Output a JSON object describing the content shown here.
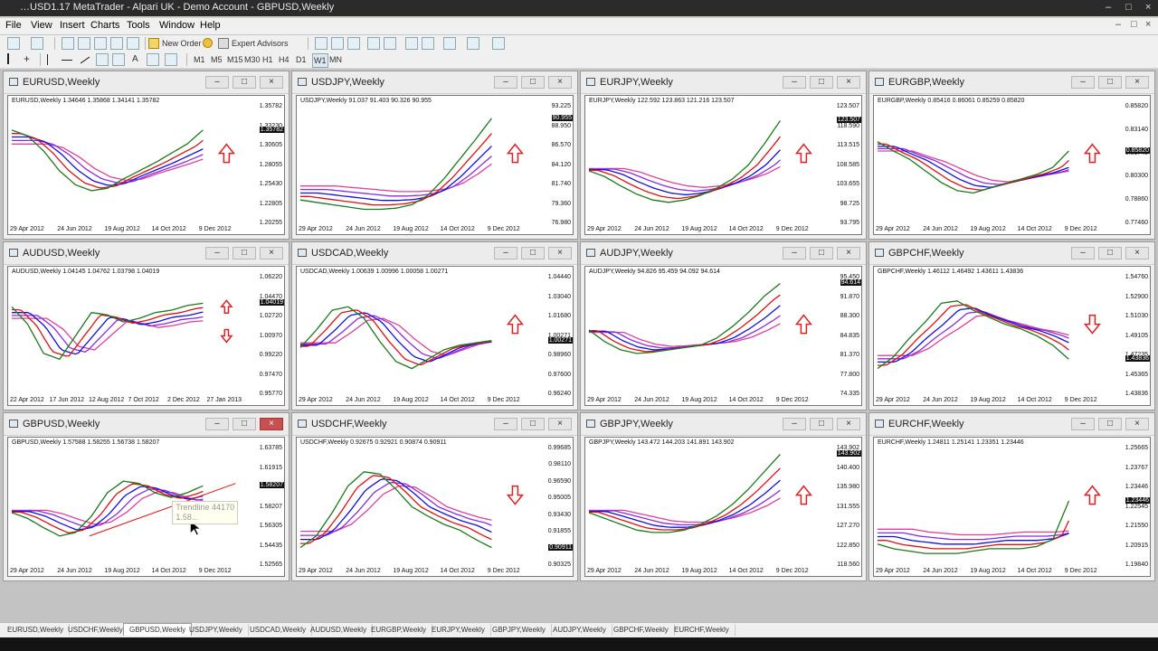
{
  "app": {
    "title": "…USD1.17 MetaTrader - Alpari UK - Demo Account - GBPUSD,Weekly",
    "window_controls": [
      "–",
      "□",
      "×"
    ]
  },
  "menu": {
    "items": [
      "File",
      "View",
      "Insert",
      "Charts",
      "Tools",
      "Window",
      "Help"
    ]
  },
  "toolbar": {
    "new_order": "New Order",
    "expert_advisors": "Expert Advisors",
    "timeframes": [
      "M1",
      "M5",
      "M15",
      "M30",
      "H1",
      "H4",
      "D1",
      "W1",
      "MN"
    ]
  },
  "colors": {
    "ma_green": "#1a7a1a",
    "ma_red": "#e01010",
    "ma_blue": "#1010e0",
    "ma_purple": "#8a2be2",
    "ma_pink": "#e0409a",
    "arrow": "#e02020"
  },
  "charts": [
    {
      "id": "eurusd",
      "title": "EURUSD,Weekly",
      "info": "EURUSD,Weekly  1.34646 1.35868 1.34141 1.35782",
      "y_labels": [
        "1.35782",
        "1.33230",
        "1.30605",
        "1.28055",
        "1.25430",
        "1.22805",
        "1.20255"
      ],
      "current": "1.35782",
      "x_labels": [
        "29 Apr 2012",
        "24 Jun 2012",
        "19 Aug 2012",
        "14 Oct 2012",
        "9 Dec 2012"
      ],
      "arrows": [
        "up"
      ],
      "shape": [
        0.8,
        0.75,
        0.62,
        0.45,
        0.33,
        0.28,
        0.3,
        0.38,
        0.45,
        0.52,
        0.6,
        0.68,
        0.8
      ]
    },
    {
      "id": "usdjpy",
      "title": "USDJPY,Weekly",
      "info": "USDJPY,Weekly  91.037 91.403 90.326 90.955",
      "y_labels": [
        "93.225",
        "88.950",
        "86.570",
        "84.120",
        "81.740",
        "79.360",
        "76.980"
      ],
      "current": "90.955",
      "x_labels": [
        "29 Apr 2012",
        "24 Jun 2012",
        "19 Aug 2012",
        "14 Oct 2012",
        "9 Dec 2012"
      ],
      "arrows": [
        "up"
      ],
      "shape": [
        0.2,
        0.18,
        0.16,
        0.14,
        0.12,
        0.12,
        0.13,
        0.16,
        0.24,
        0.38,
        0.55,
        0.72,
        0.9
      ]
    },
    {
      "id": "eurjpy",
      "title": "EURJPY,Weekly",
      "info": "EURJPY,Weekly  122.592 123.863 121.216 123.507",
      "y_labels": [
        "123.507",
        "118.590",
        "113.515",
        "108.585",
        "103.655",
        "98.725",
        "93.795"
      ],
      "current": "123.507",
      "x_labels": [
        "29 Apr 2012",
        "24 Jun 2012",
        "19 Aug 2012",
        "14 Oct 2012",
        "9 Dec 2012"
      ],
      "arrows": [
        "up"
      ],
      "shape": [
        0.45,
        0.4,
        0.32,
        0.25,
        0.2,
        0.18,
        0.2,
        0.24,
        0.3,
        0.38,
        0.5,
        0.68,
        0.88
      ]
    },
    {
      "id": "eurgbp",
      "title": "EURGBP,Weekly",
      "info": "EURGBP,Weekly  0.85416 0.86061 0.85259 0.85820",
      "y_labels": [
        "0.85820",
        "0.83140",
        "0.81740",
        "0.80300",
        "0.78860",
        "0.77460"
      ],
      "current": "0.85820",
      "x_labels": [
        "29 Apr 2012",
        "24 Jun 2012",
        "19 Aug 2012",
        "14 Oct 2012",
        "9 Dec 2012"
      ],
      "arrows": [
        "up"
      ],
      "shape": [
        0.7,
        0.62,
        0.55,
        0.45,
        0.35,
        0.28,
        0.26,
        0.3,
        0.34,
        0.38,
        0.42,
        0.48,
        0.62
      ]
    },
    {
      "id": "audusd",
      "title": "AUDUSD,Weekly",
      "info": "AUDUSD,Weekly  1.04145 1.04762 1.03798 1.04019",
      "y_labels": [
        "1.06220",
        "1.04470",
        "1.02720",
        "1.00970",
        "0.99220",
        "0.97470",
        "0.95770"
      ],
      "current": "1.04019",
      "x_labels": [
        "22 Apr 2012",
        "17 Jun 2012",
        "12 Aug 2012",
        "7 Oct 2012",
        "2 Dec 2012",
        "27 Jan 2013"
      ],
      "arrows": [
        "up",
        "down"
      ],
      "shape": [
        0.75,
        0.6,
        0.35,
        0.3,
        0.5,
        0.7,
        0.68,
        0.62,
        0.65,
        0.7,
        0.72,
        0.76,
        0.78
      ]
    },
    {
      "id": "usdcad",
      "title": "USDCAD,Weekly",
      "info": "USDCAD,Weekly  1.00639 1.00996 1.00058 1.00271",
      "y_labels": [
        "1.04440",
        "1.03040",
        "1.01680",
        "1.00271",
        "0.98960",
        "0.97600",
        "0.96240"
      ],
      "current": "1.00271",
      "x_labels": [
        "29 Apr 2012",
        "24 Jun 2012",
        "19 Aug 2012",
        "14 Oct 2012",
        "9 Dec 2012"
      ],
      "arrows": [
        "up"
      ],
      "shape": [
        0.4,
        0.55,
        0.72,
        0.75,
        0.65,
        0.45,
        0.28,
        0.22,
        0.3,
        0.38,
        0.42,
        0.44,
        0.46
      ]
    },
    {
      "id": "audjpy",
      "title": "AUDJPY,Weekly",
      "info": "AUDJPY,Weekly  94.826 95.459 94.092 94.614",
      "y_labels": [
        "95.450",
        "91.870",
        "88.300",
        "84.835",
        "81.370",
        "77.800",
        "74.335"
      ],
      "current": "94.614",
      "x_labels": [
        "29 Apr 2012",
        "24 Jun 2012",
        "19 Aug 2012",
        "14 Oct 2012",
        "9 Dec 2012"
      ],
      "arrows": [
        "up"
      ],
      "shape": [
        0.55,
        0.45,
        0.38,
        0.35,
        0.36,
        0.38,
        0.4,
        0.42,
        0.48,
        0.58,
        0.7,
        0.84,
        0.95
      ]
    },
    {
      "id": "gbpchf",
      "title": "GBPCHF,Weekly",
      "info": "GBPCHF,Weekly  1.46112 1.46492 1.43611 1.43836",
      "y_labels": [
        "1.54760",
        "1.52900",
        "1.51030",
        "1.49105",
        "1.47235",
        "1.45365",
        "1.43836"
      ],
      "current": "1.43836",
      "x_labels": [
        "29 Apr 2012",
        "24 Jun 2012",
        "19 Aug 2012",
        "14 Oct 2012",
        "9 Dec 2012"
      ],
      "arrows": [
        "down"
      ],
      "shape": [
        0.22,
        0.32,
        0.48,
        0.62,
        0.78,
        0.8,
        0.72,
        0.66,
        0.6,
        0.56,
        0.5,
        0.42,
        0.3
      ]
    },
    {
      "id": "gbpusd",
      "title": "GBPUSD,Weekly",
      "info": "GBPUSD,Weekly  1.57588 1.58255 1.56738 1.58207",
      "y_labels": [
        "1.63785",
        "1.61915",
        "1.60045",
        "1.58207",
        "1.56305",
        "1.54435",
        "1.52565"
      ],
      "current": "1.58207",
      "x_labels": [
        "29 Apr 2012",
        "24 Jun 2012",
        "19 Aug 2012",
        "14 Oct 2012",
        "9 Dec 2012"
      ],
      "arrows": [],
      "trendline_tooltip": [
        "Trendline 44170",
        "1.58..."
      ],
      "shape": [
        0.45,
        0.4,
        0.32,
        0.25,
        0.28,
        0.42,
        0.62,
        0.72,
        0.7,
        0.62,
        0.58,
        0.62,
        0.68
      ]
    },
    {
      "id": "usdchf",
      "title": "USDCHF,Weekly",
      "info": "USDCHF,Weekly  0.92675 0.92921 0.90874 0.90911",
      "y_labels": [
        "0.99685",
        "0.98110",
        "0.96590",
        "0.95005",
        "0.93430",
        "0.91855",
        "0.90911",
        "0.90325"
      ],
      "current": "0.90911",
      "x_labels": [
        "29 Apr 2012",
        "24 Jun 2012",
        "19 Aug 2012",
        "14 Oct 2012",
        "9 Dec 2012"
      ],
      "arrows": [
        "down"
      ],
      "shape": [
        0.15,
        0.25,
        0.45,
        0.68,
        0.8,
        0.78,
        0.65,
        0.5,
        0.42,
        0.35,
        0.3,
        0.22,
        0.15
      ]
    },
    {
      "id": "gbpjpy",
      "title": "GBPJPY,Weekly",
      "info": "GBPJPY,Weekly  143.472 144.203 141.891 143.902",
      "y_labels": [
        "143.902",
        "140.400",
        "135.980",
        "131.555",
        "127.270",
        "122.850",
        "118.560"
      ],
      "current": "143.902",
      "x_labels": [
        "29 Apr 2012",
        "24 Jun 2012",
        "19 Aug 2012",
        "14 Oct 2012",
        "9 Dec 2012"
      ],
      "arrows": [
        "up"
      ],
      "shape": [
        0.45,
        0.4,
        0.35,
        0.3,
        0.28,
        0.28,
        0.3,
        0.35,
        0.42,
        0.52,
        0.65,
        0.8,
        0.95
      ]
    },
    {
      "id": "eurchf",
      "title": "EURCHF,Weekly",
      "info": "EURCHF,Weekly  1.24811 1.25141 1.23351 1.23446",
      "y_labels": [
        "1.25665",
        "1.23767",
        "1.23446",
        "1.22545",
        "1.21550",
        "1.20915",
        "1.19840"
      ],
      "current": "1.23446",
      "x_labels": [
        "29 Apr 2012",
        "24 Jun 2012",
        "19 Aug 2012",
        "14 Oct 2012",
        "9 Dec 2012"
      ],
      "arrows": [
        "up"
      ],
      "shape": [
        0.18,
        0.14,
        0.12,
        0.1,
        0.1,
        0.1,
        0.12,
        0.14,
        0.14,
        0.14,
        0.16,
        0.22,
        0.55
      ]
    }
  ],
  "tabs": {
    "items": [
      "EURUSD,Weekly",
      "USDCHF,Weekly",
      "GBPUSD,Weekly",
      "USDJPY,Weekly",
      "USDCAD,Weekly",
      "AUDUSD,Weekly",
      "EURGBP,Weekly",
      "EURJPY,Weekly",
      "GBPJPY,Weekly",
      "AUDJPY,Weekly",
      "GBPCHF,Weekly",
      "EURCHF,Weekly"
    ],
    "active_index": 2
  }
}
